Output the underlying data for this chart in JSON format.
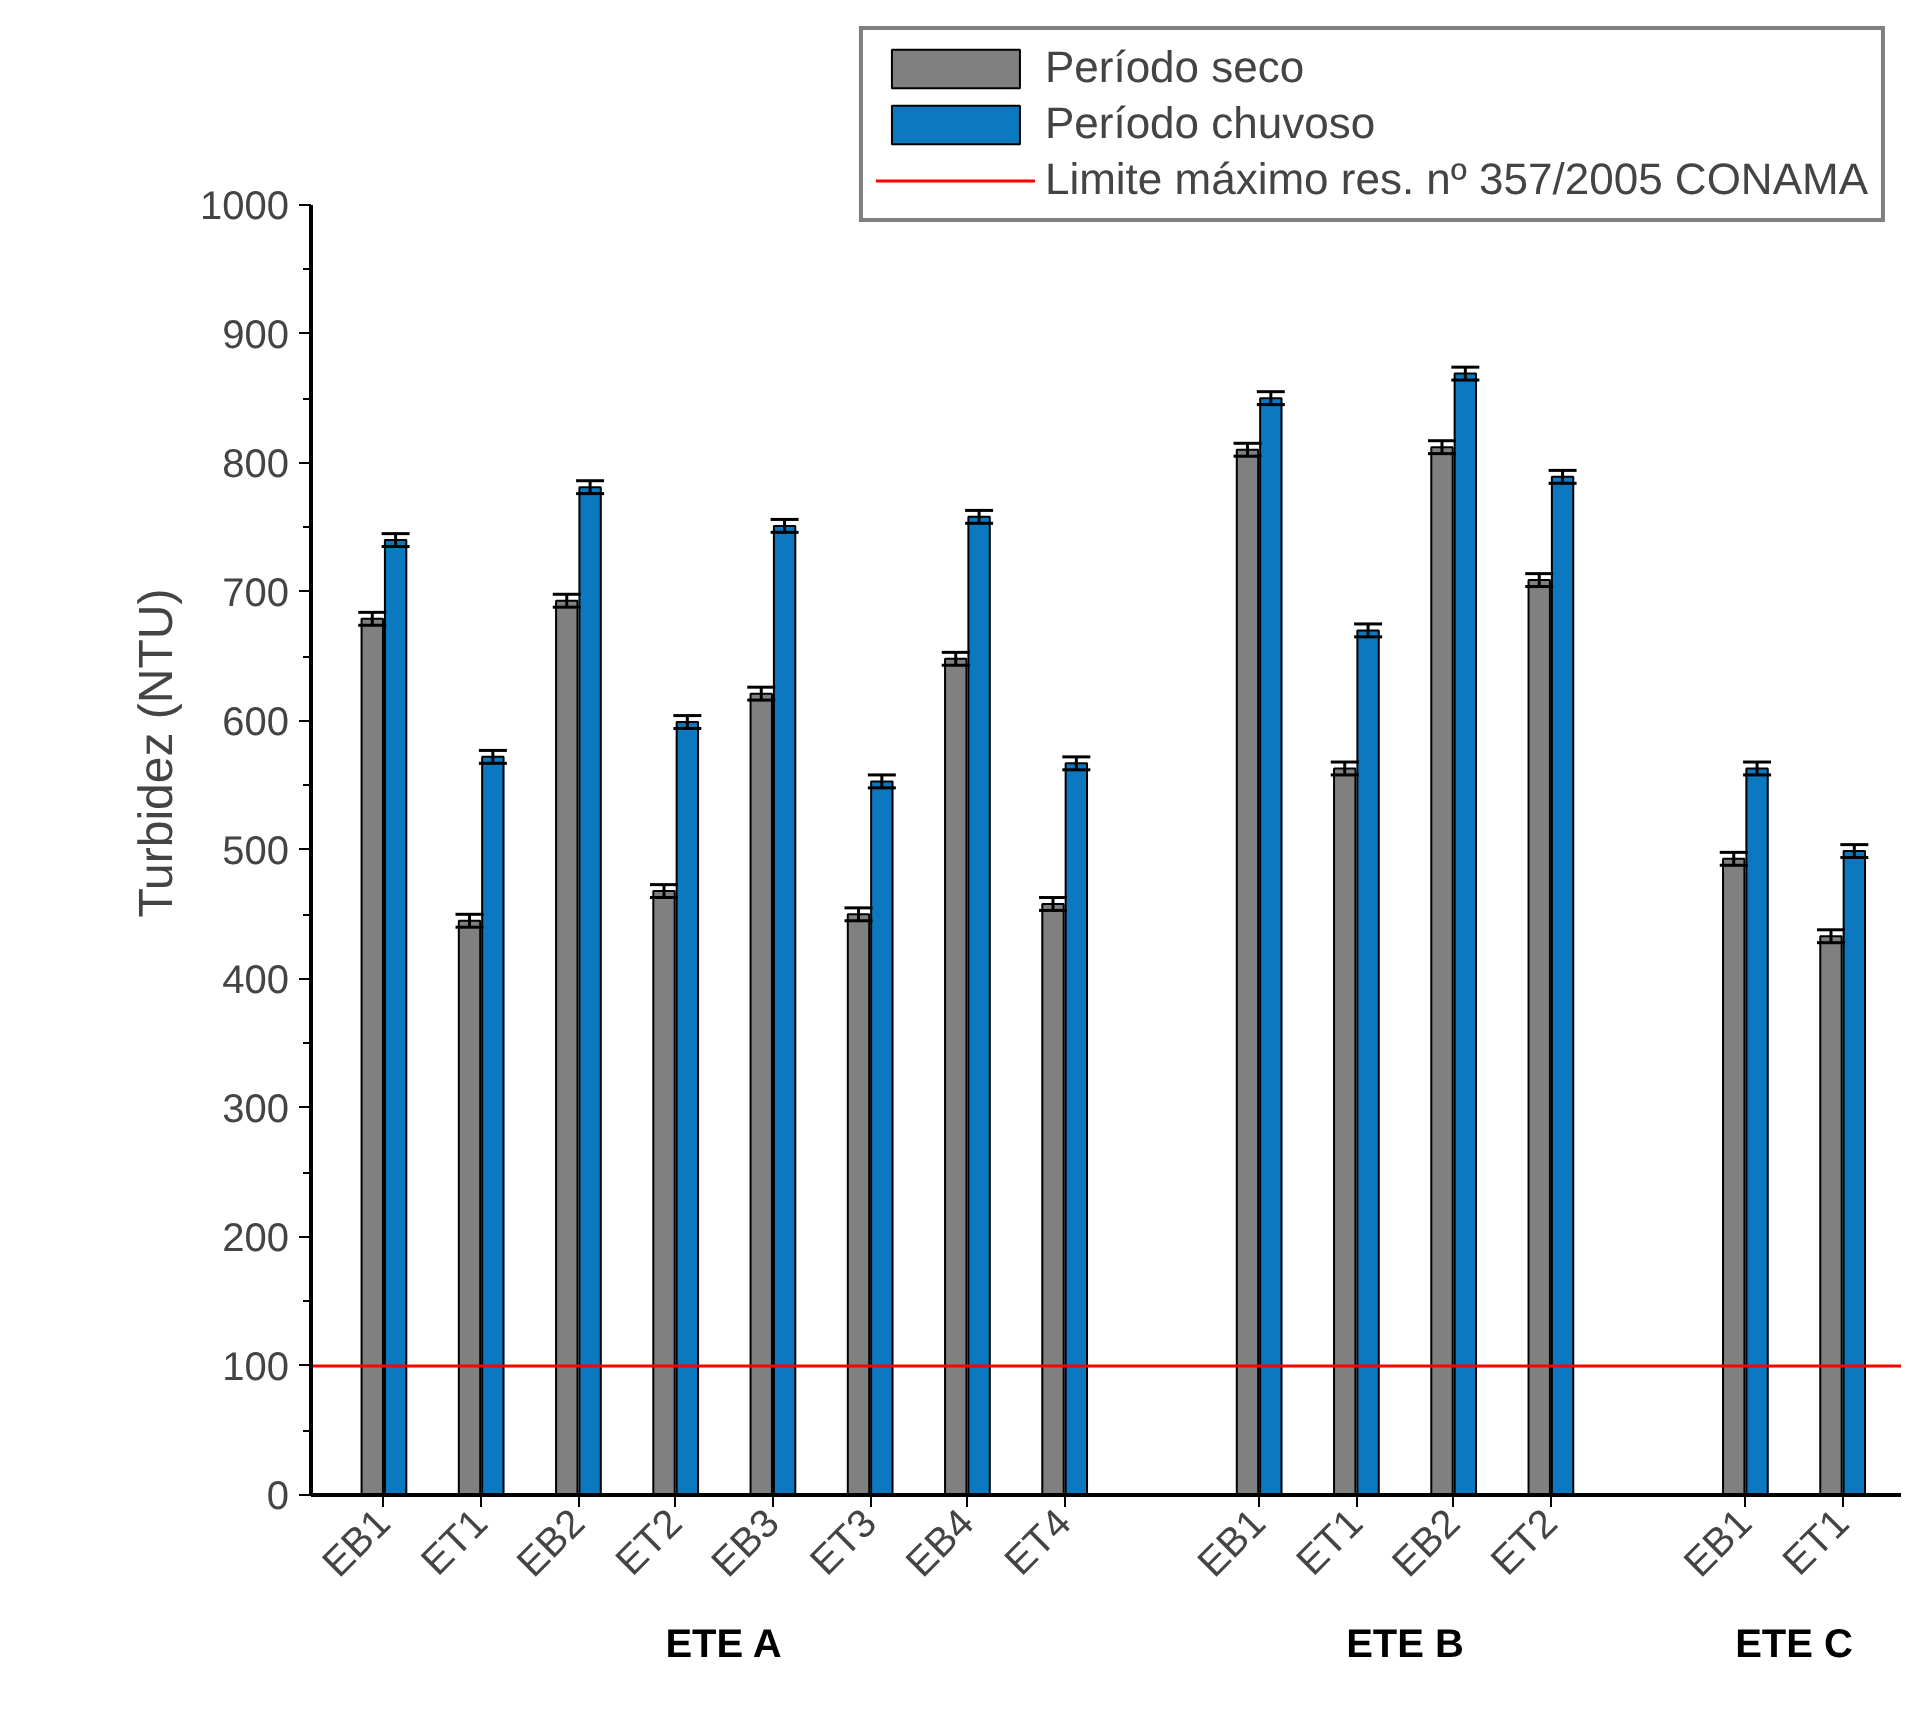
{
  "chart_data": {
    "type": "bar",
    "ylabel": "Turbidez (NTU)",
    "categories": [
      "EB1",
      "ET1",
      "EB2",
      "ET2",
      "EB3",
      "ET3",
      "EB4",
      "ET4",
      null,
      "EB1",
      "ET1",
      "EB2",
      "ET2",
      null,
      "EB1",
      "ET1"
    ],
    "series": [
      {
        "name": "Período seco",
        "color": "#808080",
        "values": [
          679,
          445,
          693,
          468,
          621,
          450,
          648,
          458,
          null,
          810,
          563,
          812,
          709,
          null,
          493,
          433
        ],
        "errors": [
          5,
          5,
          5,
          5,
          5,
          5,
          5,
          5,
          null,
          5,
          5,
          5,
          5,
          null,
          5,
          5
        ]
      },
      {
        "name": "Período chuvoso",
        "color": "#0c78c0",
        "values": [
          740,
          572,
          781,
          599,
          751,
          553,
          758,
          567,
          null,
          850,
          670,
          869,
          789,
          null,
          563,
          499
        ],
        "errors": [
          5,
          5,
          5,
          5,
          5,
          5,
          5,
          5,
          null,
          5,
          5,
          5,
          5,
          null,
          5,
          5
        ]
      }
    ],
    "ylim": [
      0,
      1000
    ],
    "yticks": [
      0,
      100,
      200,
      300,
      400,
      500,
      600,
      700,
      800,
      900,
      1000
    ],
    "ref_lines": [
      {
        "axis": "y",
        "value": 100,
        "label": "Limite máximo res. nº 357/2005 CONAMA",
        "color": "#ff0000"
      }
    ],
    "annotations": [
      "ETE A",
      "ETE B",
      "ETE C"
    ],
    "grid": false,
    "legend": "top right"
  }
}
